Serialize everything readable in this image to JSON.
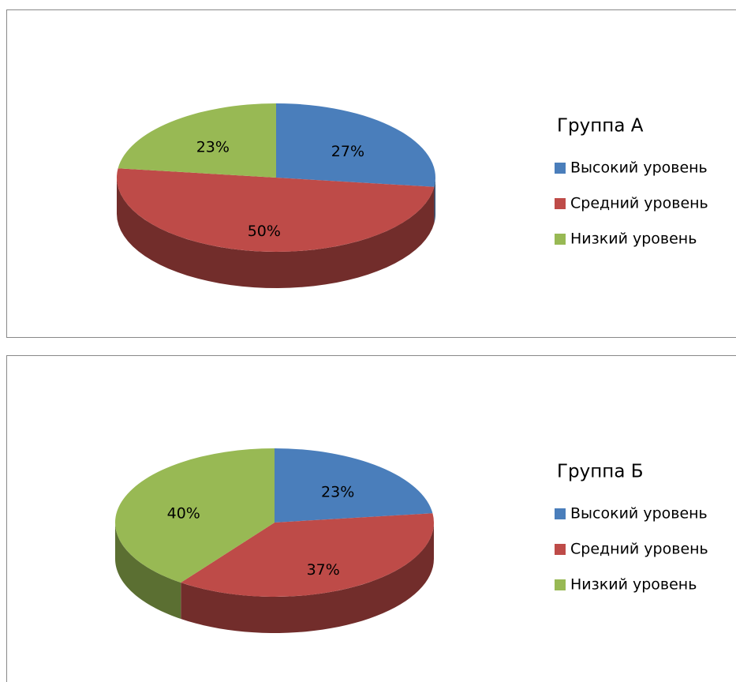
{
  "chart_data": [
    {
      "type": "pie",
      "title": "Группа А",
      "categories": [
        "Высокий уровень",
        "Средний уровень",
        "Низкий уровень"
      ],
      "values": [
        27,
        50,
        23
      ],
      "value_labels": [
        "27%",
        "50%",
        "23%"
      ],
      "colors": [
        "#4a7ebb",
        "#be4b48",
        "#98b954"
      ]
    },
    {
      "type": "pie",
      "title": "Группа Б",
      "categories": [
        "Высокий уровень",
        "Средний уровень",
        "Низкий уровень"
      ],
      "values": [
        23,
        37,
        40
      ],
      "value_labels": [
        "23%",
        "37%",
        "40%"
      ],
      "colors": [
        "#4a7ebb",
        "#be4b48",
        "#98b954"
      ]
    }
  ]
}
